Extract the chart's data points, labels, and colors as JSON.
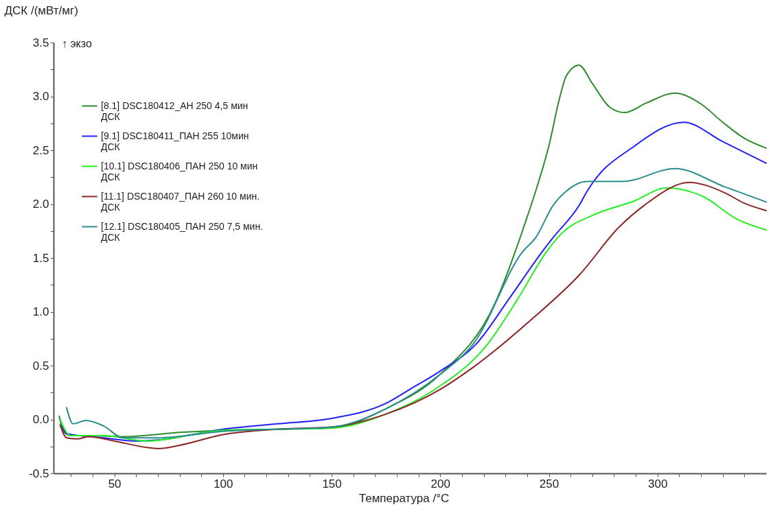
{
  "chart_data": {
    "type": "line",
    "xlabel": "Температура /°C",
    "ylabel": "ДСК /(мВт/мг)",
    "annotations": [
      "↑ экзо"
    ],
    "legend": "top left",
    "xlim": [
      22,
      350
    ],
    "ylim": [
      -0.5,
      3.5
    ],
    "xticks": [
      {
        "value": 30,
        "label": null
      },
      {
        "value": 40,
        "label": null
      },
      50,
      {
        "value": 60,
        "label": null
      },
      {
        "value": 70,
        "label": null
      },
      {
        "value": 80,
        "label": null
      },
      {
        "value": 90,
        "label": null
      },
      100,
      {
        "value": 110,
        "label": null
      },
      {
        "value": 120,
        "label": null
      },
      {
        "value": 130,
        "label": null
      },
      {
        "value": 140,
        "label": null
      },
      150,
      {
        "value": 160,
        "label": null
      },
      {
        "value": 170,
        "label": null
      },
      {
        "value": 180,
        "label": null
      },
      {
        "value": 190,
        "label": null
      },
      200,
      {
        "value": 210,
        "label": null
      },
      {
        "value": 220,
        "label": null
      },
      {
        "value": 230,
        "label": null
      },
      {
        "value": 240,
        "label": null
      },
      250,
      {
        "value": 260,
        "label": null
      },
      {
        "value": 270,
        "label": null
      },
      {
        "value": 280,
        "label": null
      },
      {
        "value": 290,
        "label": null
      },
      300,
      {
        "value": 310,
        "label": null
      },
      {
        "value": 320,
        "label": null
      },
      {
        "value": 330,
        "label": null
      },
      {
        "value": 340,
        "label": null
      }
    ],
    "yticks": [
      {
        "value": -0.5,
        "label": "-0.5"
      },
      {
        "value": -0.25,
        "label": null
      },
      {
        "value": 0,
        "label": "0.0"
      },
      {
        "value": 0.25,
        "label": null
      },
      {
        "value": 0.5,
        "label": "0.5"
      },
      {
        "value": 0.75,
        "label": null
      },
      {
        "value": 1,
        "label": "1.0"
      },
      {
        "value": 1.25,
        "label": null
      },
      {
        "value": 1.5,
        "label": "1.5"
      },
      {
        "value": 1.75,
        "label": null
      },
      {
        "value": 2,
        "label": "2.0"
      },
      {
        "value": 2.25,
        "label": null
      },
      {
        "value": 2.5,
        "label": "2.5"
      },
      {
        "value": 2.75,
        "label": null
      },
      {
        "value": 3,
        "label": "3.0"
      },
      {
        "value": 3.25,
        "label": null
      },
      {
        "value": 3.5,
        "label": "3.5"
      }
    ],
    "series": [
      {
        "name": "[8.1] DSC180412_АН 250 4,5 мин\nДСК",
        "color": "#2e8b2e",
        "x": [
          24.6,
          27,
          30,
          40,
          53.5,
          80,
          100,
          150,
          175,
          200,
          225,
          240,
          245,
          250,
          255,
          258,
          263.8,
          270,
          278,
          284.8,
          295,
          308,
          320,
          330,
          340,
          350
        ],
        "values": [
          0.03,
          -0.12,
          -0.15,
          -0.15,
          -0.16,
          -0.12,
          -0.1,
          -0.08,
          0.1,
          0.42,
          1.07,
          1.88,
          2.19,
          2.54,
          2.99,
          3.19,
          3.29,
          3.12,
          2.9,
          2.85,
          2.94,
          3.03,
          2.93,
          2.76,
          2.61,
          2.52
        ]
      },
      {
        "name": "[9.1] DSC180411_ПАН 255 10мин\nДСК",
        "color": "#2020ff",
        "x": [
          25,
          28,
          35,
          45,
          60,
          70,
          100,
          125,
          150,
          175,
          186,
          200,
          216.5,
          232,
          247,
          252,
          264,
          267.6,
          289.5,
          312,
          330,
          350
        ],
        "values": [
          0.0,
          -0.13,
          null,
          -0.17,
          -0.2,
          -0.19,
          -0.09,
          -0.04,
          0.01,
          0.15,
          0.28,
          0.45,
          0.7,
          1.13,
          1.56,
          1.69,
          1.99,
          2.12,
          2.54,
          2.76,
          2.58,
          2.38
        ]
      },
      {
        "name": "[10.1] DSC180406_ПАН 250 10 мин\nДСК",
        "color": "#22ee22",
        "x": [
          25,
          28,
          30,
          45,
          65,
          100,
          150,
          175,
          197.6,
          221.8,
          236,
          249,
          256,
          270.6,
          289.5,
          304,
          321,
          336.5,
          350
        ],
        "values": [
          0.0,
          -0.12,
          -0.15,
          -0.15,
          -0.2,
          -0.1,
          -0.08,
          0.05,
          0.28,
          0.7,
          1.13,
          1.56,
          1.73,
          1.9,
          2.03,
          2.15,
          2.07,
          1.86,
          1.76
        ]
      },
      {
        "name": "[11.1] DSC180407_ПАН 260 10 мин.\nДСК",
        "color": "#8b2525",
        "x": [
          25,
          28,
          33,
          38,
          50,
          65,
          70,
          80,
          100,
          125,
          150,
          175,
          200,
          215.5,
          241.5,
          264.4,
          282,
          294,
          314.6,
          331.5,
          339.7,
          350
        ],
        "values": [
          -0.05,
          -0.17,
          -0.18,
          -0.16,
          -0.2,
          -0.26,
          -0.27,
          -0.24,
          -0.14,
          -0.09,
          -0.07,
          0.05,
          0.28,
          0.49,
          0.92,
          1.35,
          1.78,
          1.99,
          2.2,
          2.1,
          2.01,
          1.94
        ]
      },
      {
        "name": "[12.1] DSC180405_ПАН 250 7,5 мин.\nДСК",
        "color": "#2a8c8c",
        "x": [
          28,
          31,
          37,
          45,
          54,
          60,
          70,
          100,
          150,
          175,
          200,
          215.5,
          238,
          244,
          252,
          258,
          267.6,
          284,
          308,
          331,
          350
        ],
        "values": [
          0.11,
          -0.04,
          -0.01,
          -0.06,
          -0.17,
          -0.17,
          -0.17,
          -0.11,
          -0.07,
          0.1,
          0.42,
          0.71,
          1.56,
          1.69,
          1.99,
          2.12,
          2.21,
          2.21,
          2.33,
          2.16,
          2.02
        ]
      }
    ]
  }
}
